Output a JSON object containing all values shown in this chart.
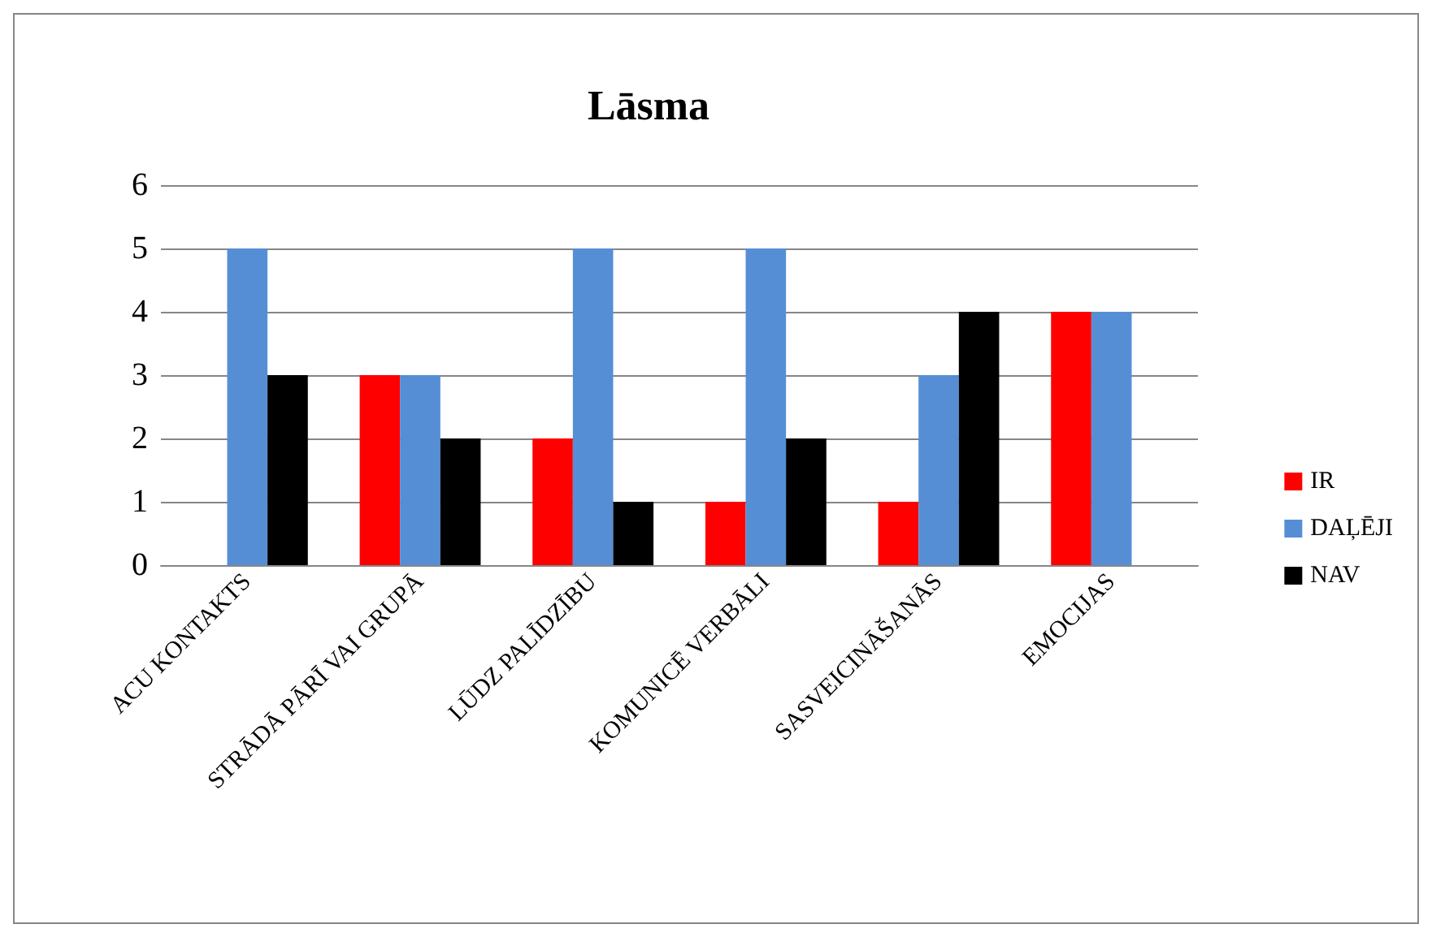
{
  "chart_data": {
    "type": "bar",
    "title": "Lāsma",
    "categories": [
      "ACU KONTAKTS",
      "STRĀDĀ PĀRĪ VAI GRUPĀ",
      "LŪDZ PALĪDZĪBU",
      "KOMUNICĒ VERBĀLI",
      "SASVEICINĀŠANĀS",
      "EMOCIJAS"
    ],
    "series": [
      {
        "name": "IR",
        "color": "#ff0000",
        "values": [
          0,
          3,
          2,
          1,
          1,
          4
        ]
      },
      {
        "name": "DAĻĒJI",
        "color": "#558ed5",
        "values": [
          5,
          3,
          5,
          5,
          3,
          4
        ]
      },
      {
        "name": "NAV",
        "color": "#000000",
        "values": [
          3,
          2,
          1,
          2,
          4,
          0
        ]
      }
    ],
    "ylim": [
      0,
      6
    ],
    "yticks": [
      0,
      1,
      2,
      3,
      4,
      5,
      6
    ],
    "grid": "y",
    "legend": "right"
  }
}
